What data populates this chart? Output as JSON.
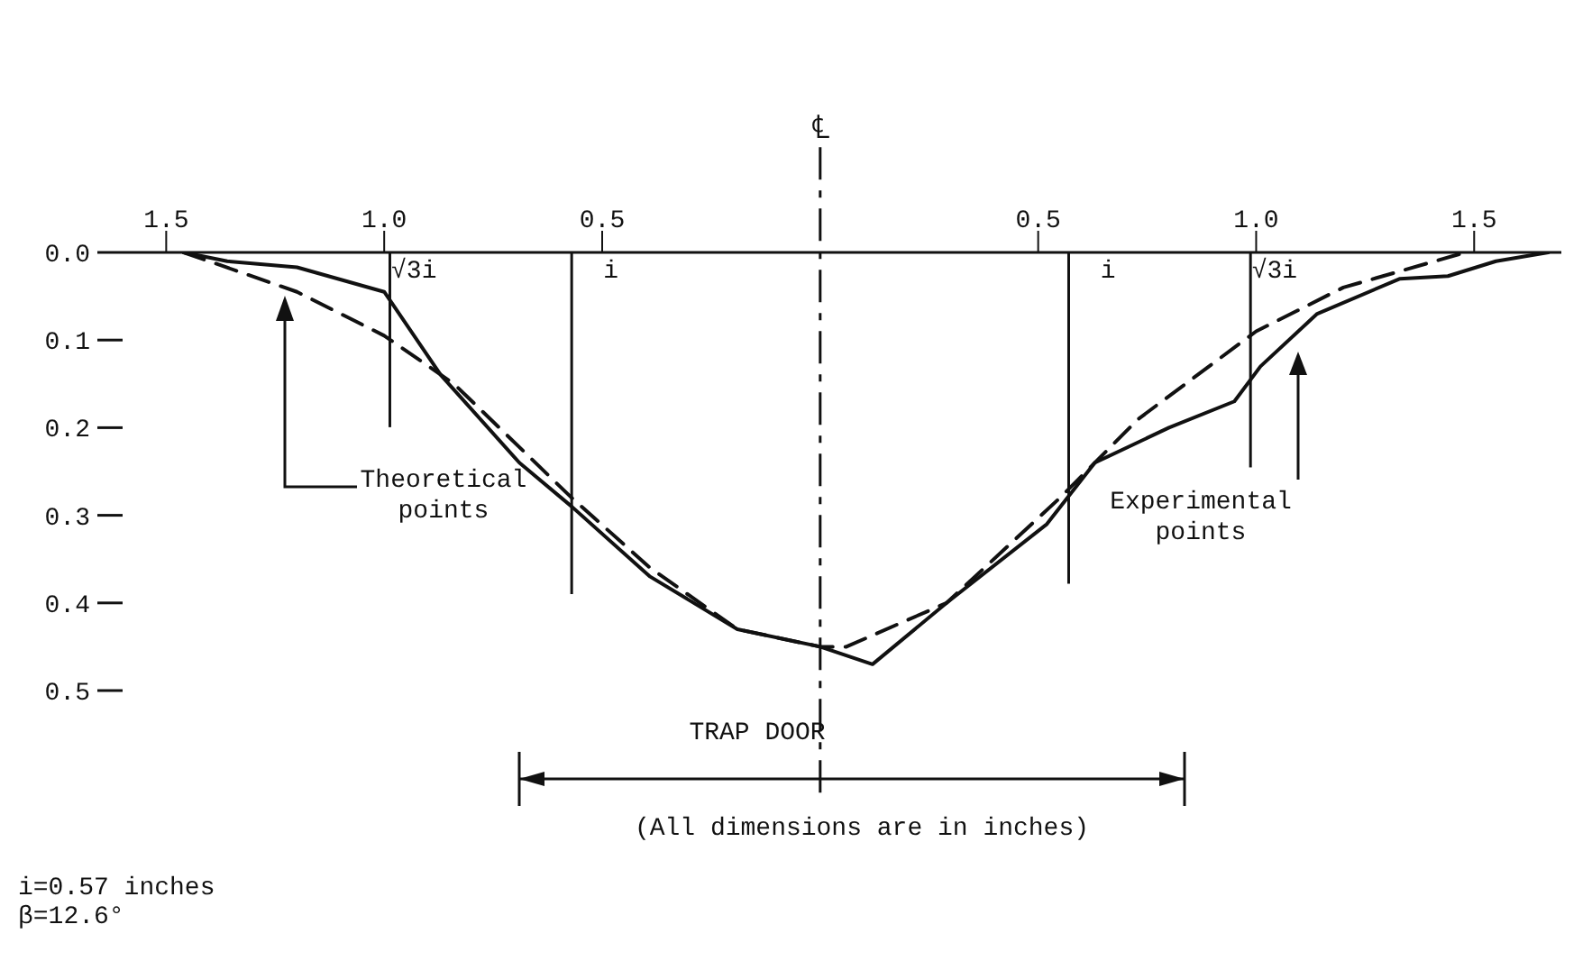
{
  "chart_data": {
    "type": "line",
    "xlim": [
      -1.6,
      1.7
    ],
    "ylim": [
      0.5,
      0
    ],
    "xticks": [
      {
        "value": -1.5,
        "label": "1.5"
      },
      {
        "value": -1.0,
        "label": "1.0"
      },
      {
        "value": -0.5,
        "label": "0.5"
      },
      {
        "value": 0.5,
        "label": "0.5"
      },
      {
        "value": 1.0,
        "label": "1.0"
      },
      {
        "value": 1.5,
        "label": "1.5"
      }
    ],
    "yticks": [
      {
        "value": 0,
        "label": "0.0"
      },
      0.1,
      0.2,
      0.3,
      0.4,
      0.5
    ],
    "grid": false,
    "legend": false,
    "marker": "none",
    "series": [
      {
        "name": "Theoretical points",
        "type": "line",
        "line_style": "dashed",
        "color": "#111111",
        "x": [
          -1.46,
          -1.2,
          -1.0,
          -0.84,
          -0.57,
          -0.39,
          -0.19,
          0,
          0.06,
          0.29,
          0.55,
          0.73,
          1.0,
          1.2,
          1.48
        ],
        "values": [
          0,
          0.045,
          0.095,
          0.15,
          0.28,
          0.36,
          0.43,
          0.45,
          0.45,
          0.4,
          0.28,
          0.19,
          0.09,
          0.04,
          0
        ]
      },
      {
        "name": "Experimental points",
        "type": "line",
        "line_style": "solid",
        "color": "#111111",
        "x": [
          -1.46,
          -1.36,
          -1.2,
          -1.0,
          -0.87,
          -0.69,
          -0.57,
          -0.39,
          -0.19,
          0,
          0.12,
          0.29,
          0.52,
          0.63,
          0.8,
          0.95,
          1.01,
          1.14,
          1.33,
          1.44,
          1.55,
          1.67
        ],
        "values": [
          0,
          0.01,
          0.017,
          0.045,
          0.14,
          0.24,
          0.29,
          0.37,
          0.43,
          0.45,
          0.47,
          0.4,
          0.31,
          0.24,
          0.2,
          0.17,
          0.13,
          0.07,
          0.03,
          0.027,
          0.01,
          0
        ]
      }
    ],
    "ref_lines": [
      {
        "axis": "x",
        "value": 0,
        "label": "℄",
        "line_style": "dashed",
        "color": "#111111"
      },
      {
        "axis": "x",
        "value": -0.57,
        "label": "i",
        "color": "#111111"
      },
      {
        "axis": "x",
        "value": 0.57,
        "label": "i",
        "color": "#111111"
      },
      {
        "axis": "x",
        "value": -0.987,
        "label": "√3i",
        "color": "#111111"
      },
      {
        "axis": "x",
        "value": 0.987,
        "label": "√3i",
        "color": "#111111"
      }
    ],
    "annotations": [
      "(All dimensions are in inches)",
      "i=0.57 inches",
      "β=12.6°",
      "TRAP DOOR"
    ]
  }
}
